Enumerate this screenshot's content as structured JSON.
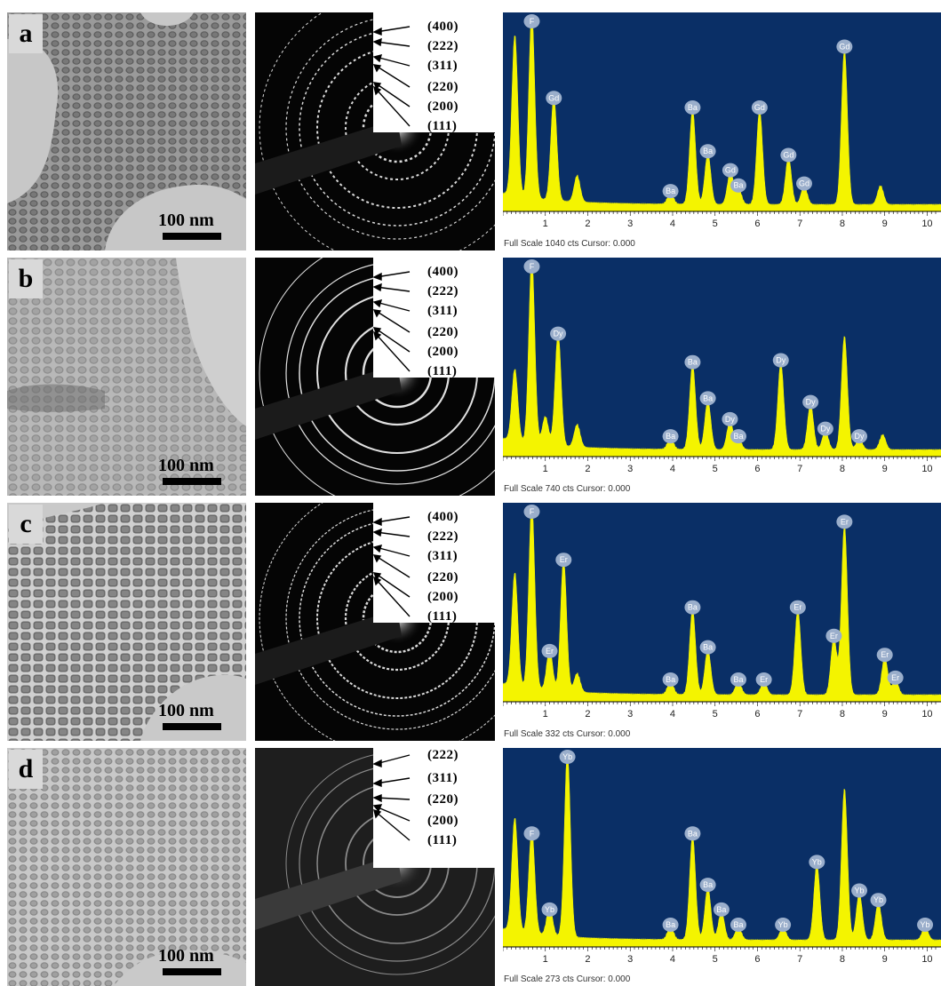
{
  "colors": {
    "eds_bg": "#0a2f66",
    "spectrum": "#f4f400",
    "label_bubble": "#9aaecb"
  },
  "x_ticks": [
    "1",
    "2",
    "3",
    "4",
    "5",
    "6",
    "7",
    "8",
    "9",
    "10"
  ],
  "rows": [
    {
      "letter": "a",
      "scale": "100 nm",
      "hkl": [
        "(400)",
        "(222)",
        "(311)",
        "(220)",
        "(200)",
        "(111)"
      ],
      "footer": "Full Scale 1040 cts Cursor: 0.000",
      "peaks": [
        {
          "label": "F",
          "x": 0.68,
          "h": 0.98
        },
        {
          "label": "Gd",
          "x": 1.2,
          "h": 0.55
        },
        {
          "label": "Ba",
          "x": 3.95,
          "h": 0.06
        },
        {
          "label": "Ba",
          "x": 4.47,
          "h": 0.5
        },
        {
          "label": "Ba",
          "x": 4.83,
          "h": 0.27
        },
        {
          "label": "Gd",
          "x": 5.36,
          "h": 0.17
        },
        {
          "label": "Ba",
          "x": 5.55,
          "h": 0.09
        },
        {
          "label": "Gd",
          "x": 6.05,
          "h": 0.5
        },
        {
          "label": "Gd",
          "x": 6.73,
          "h": 0.25
        },
        {
          "label": "Gd",
          "x": 7.1,
          "h": 0.1
        },
        {
          "label": "Gd",
          "x": 8.05,
          "h": 0.82
        }
      ],
      "extra": [
        {
          "x": 0.28,
          "h": 0.85
        },
        {
          "x": 1.75,
          "h": 0.14
        },
        {
          "x": 8.9,
          "h": 0.1
        }
      ]
    },
    {
      "letter": "b",
      "scale": "100 nm",
      "hkl": [
        "(400)",
        "(222)",
        "(311)",
        "(220)",
        "(200)",
        "(111)"
      ],
      "footer": "Full Scale 740 cts Cursor: 0.000",
      "peaks": [
        {
          "label": "F",
          "x": 0.68,
          "h": 0.98
        },
        {
          "label": "Dy",
          "x": 1.3,
          "h": 0.6
        },
        {
          "label": "Ba",
          "x": 3.95,
          "h": 0.06
        },
        {
          "label": "Ba",
          "x": 4.47,
          "h": 0.45
        },
        {
          "label": "Ba",
          "x": 4.83,
          "h": 0.26
        },
        {
          "label": "Dy",
          "x": 5.35,
          "h": 0.15
        },
        {
          "label": "Ba",
          "x": 5.55,
          "h": 0.06
        },
        {
          "label": "Dy",
          "x": 6.55,
          "h": 0.46
        },
        {
          "label": "Dy",
          "x": 7.25,
          "h": 0.24
        },
        {
          "label": "Dy",
          "x": 7.6,
          "h": 0.1
        },
        {
          "label": "Dy",
          "x": 8.4,
          "h": 0.06
        }
      ],
      "extra": [
        {
          "x": 0.28,
          "h": 0.38
        },
        {
          "x": 1.0,
          "h": 0.15
        },
        {
          "x": 1.75,
          "h": 0.12
        },
        {
          "x": 8.05,
          "h": 0.6
        },
        {
          "x": 8.95,
          "h": 0.08
        }
      ]
    },
    {
      "letter": "c",
      "scale": "100 nm",
      "hkl": [
        "(400)",
        "(222)",
        "(311)",
        "(220)",
        "(200)",
        "(111)"
      ],
      "footer": "Full Scale 332 cts Cursor: 0.000",
      "peaks": [
        {
          "label": "F",
          "x": 0.68,
          "h": 0.98
        },
        {
          "label": "Er",
          "x": 1.1,
          "h": 0.22
        },
        {
          "label": "Er",
          "x": 1.43,
          "h": 0.7
        },
        {
          "label": "Ba",
          "x": 3.95,
          "h": 0.07
        },
        {
          "label": "Ba",
          "x": 4.47,
          "h": 0.45
        },
        {
          "label": "Ba",
          "x": 4.83,
          "h": 0.24
        },
        {
          "label": "Ba",
          "x": 5.55,
          "h": 0.07
        },
        {
          "label": "Er",
          "x": 6.15,
          "h": 0.07
        },
        {
          "label": "Er",
          "x": 6.95,
          "h": 0.45
        },
        {
          "label": "Er",
          "x": 7.8,
          "h": 0.3
        },
        {
          "label": "Er",
          "x": 8.05,
          "h": 0.9
        },
        {
          "label": "Er",
          "x": 9.0,
          "h": 0.2
        },
        {
          "label": "Er",
          "x": 9.25,
          "h": 0.08
        }
      ],
      "extra": [
        {
          "x": 0.28,
          "h": 0.6
        },
        {
          "x": 1.75,
          "h": 0.1
        }
      ]
    },
    {
      "letter": "d",
      "scale": "100 nm",
      "hkl": [
        "(222)",
        "(311)",
        "(220)",
        "(200)",
        "(111)"
      ],
      "footer": "Full Scale 273 cts Cursor: 0.000",
      "peaks": [
        {
          "label": "F",
          "x": 0.68,
          "h": 0.55
        },
        {
          "label": "Yb",
          "x": 1.1,
          "h": 0.15
        },
        {
          "label": "Yb",
          "x": 1.52,
          "h": 0.98
        },
        {
          "label": "Ba",
          "x": 3.95,
          "h": 0.07
        },
        {
          "label": "Ba",
          "x": 4.47,
          "h": 0.55
        },
        {
          "label": "Ba",
          "x": 4.83,
          "h": 0.28
        },
        {
          "label": "Ba",
          "x": 5.15,
          "h": 0.15
        },
        {
          "label": "Ba",
          "x": 5.55,
          "h": 0.07
        },
        {
          "label": "Yb",
          "x": 6.6,
          "h": 0.07
        },
        {
          "label": "Yb",
          "x": 7.4,
          "h": 0.4
        },
        {
          "label": "Yb",
          "x": 8.4,
          "h": 0.25
        },
        {
          "label": "Yb",
          "x": 8.85,
          "h": 0.2
        },
        {
          "label": "Yb",
          "x": 9.95,
          "h": 0.07
        }
      ],
      "extra": [
        {
          "x": 0.28,
          "h": 0.6
        },
        {
          "x": 8.05,
          "h": 0.8
        }
      ]
    }
  ]
}
